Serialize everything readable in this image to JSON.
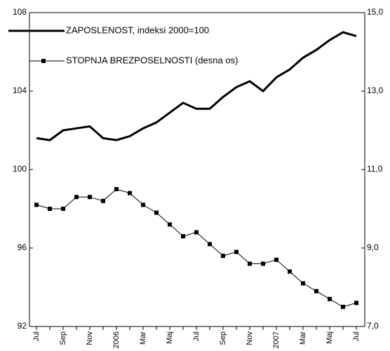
{
  "chart_data": {
    "type": "line",
    "categories": [
      "Jul",
      null,
      "Sep",
      null,
      "Nov",
      null,
      "2006",
      null,
      "Mar",
      null,
      "Maj",
      null,
      "Jul",
      null,
      "Sep",
      null,
      "Nov",
      null,
      "2007",
      null,
      "Mar",
      null,
      "Maj",
      null,
      "Jul"
    ],
    "series": [
      {
        "name": "ZAPOSLENOST, indeksi 2000=100",
        "color": "#000000",
        "axis": "y",
        "values": [
          101.6,
          101.5,
          102.0,
          102.1,
          102.2,
          101.6,
          101.5,
          101.7,
          102.1,
          102.4,
          102.9,
          103.4,
          103.1,
          103.1,
          103.7,
          104.2,
          104.5,
          104.0,
          104.7,
          105.1,
          105.7,
          106.1,
          106.6,
          107.0,
          106.8
        ]
      },
      {
        "name": "STOPNJA BREZPOSELNOSTI (desna os)",
        "color": "#000000",
        "axis": "y2",
        "values": [
          10.1,
          10.0,
          10.0,
          10.3,
          10.3,
          10.2,
          10.5,
          10.4,
          10.1,
          9.9,
          9.6,
          9.3,
          9.4,
          9.1,
          8.8,
          8.9,
          8.6,
          8.6,
          8.7,
          8.4,
          8.1,
          7.9,
          7.7,
          7.5,
          7.6
        ]
      }
    ],
    "ylim": [
      92,
      108
    ],
    "yticks": [
      92,
      96,
      100,
      104,
      108
    ],
    "y2lim": [
      7,
      15
    ],
    "y2ticks": [
      {
        "value": 7,
        "label": "7,0"
      },
      {
        "value": 9,
        "label": "9,0"
      },
      {
        "value": 11,
        "label": "11,0"
      },
      {
        "value": 13,
        "label": "13,0"
      },
      {
        "value": 15,
        "label": "15,0"
      }
    ],
    "legend": "upper left"
  }
}
